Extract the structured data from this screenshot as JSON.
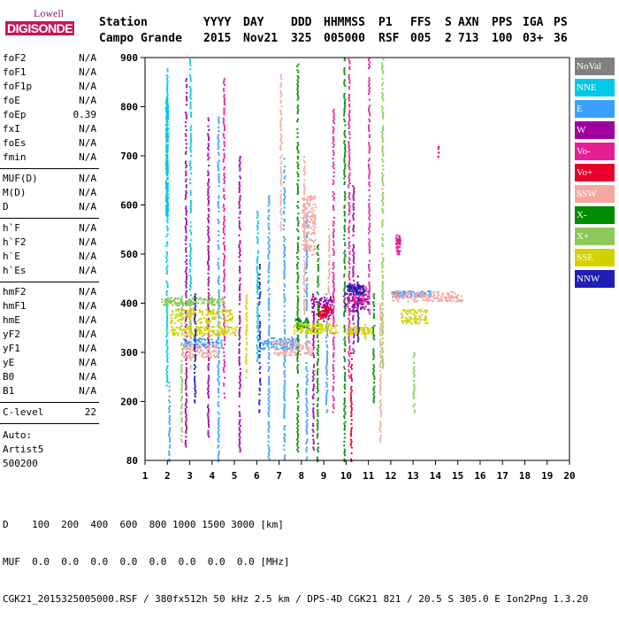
{
  "logo": {
    "line1": "Lowell",
    "line2": "DIGISONDE"
  },
  "header": {
    "labels": [
      "Station",
      "YYYY",
      "DAY",
      "DDD",
      "HHMMSS",
      "P1",
      "FFS",
      "S",
      "AXN",
      "PPS",
      "IGA",
      "PS"
    ],
    "values": [
      "Campo Grande",
      "2015",
      "Nov21",
      "325",
      "005000",
      "RSF",
      "005",
      "2",
      "713",
      "100",
      "03+",
      "36"
    ]
  },
  "params": [
    {
      "k": "foF2",
      "v": "N/A"
    },
    {
      "k": "foF1",
      "v": "N/A"
    },
    {
      "k": "foF1p",
      "v": "N/A"
    },
    {
      "k": "foE",
      "v": "N/A"
    },
    {
      "k": "foEp",
      "v": "0.39"
    },
    {
      "k": "fxI",
      "v": "N/A"
    },
    {
      "k": "foEs",
      "v": "N/A"
    },
    {
      "k": "fmin",
      "v": "N/A"
    },
    {
      "k": "MUF(D)",
      "v": "N/A"
    },
    {
      "k": "M(D)",
      "v": "N/A"
    },
    {
      "k": "D",
      "v": "N/A"
    },
    {
      "k": "h`F",
      "v": "N/A"
    },
    {
      "k": "h`F2",
      "v": "N/A"
    },
    {
      "k": "h`E",
      "v": "N/A"
    },
    {
      "k": "h`Es",
      "v": "N/A"
    },
    {
      "k": "hmF2",
      "v": "N/A"
    },
    {
      "k": "hmF1",
      "v": "N/A"
    },
    {
      "k": "hmE",
      "v": "N/A"
    },
    {
      "k": "yF2",
      "v": "N/A"
    },
    {
      "k": "yF1",
      "v": "N/A"
    },
    {
      "k": "yE",
      "v": "N/A"
    },
    {
      "k": "B0",
      "v": "N/A"
    },
    {
      "k": "B1",
      "v": "N/A"
    },
    {
      "k": "C-level",
      "v": "22"
    }
  ],
  "auto": {
    "label": "Auto:",
    "name": "Artist5",
    "code": "500200"
  },
  "legend": [
    {
      "name": "NoVal",
      "color": "#808080"
    },
    {
      "name": "NNE",
      "color": "#00c8e6"
    },
    {
      "name": "E",
      "color": "#3aa0ff"
    },
    {
      "name": "W",
      "color": "#a000a0"
    },
    {
      "name": "Vo-",
      "color": "#e61e96"
    },
    {
      "name": "Vo+",
      "color": "#e6002a"
    },
    {
      "name": "SSW",
      "color": "#f5a8a0"
    },
    {
      "name": "X-",
      "color": "#008c00"
    },
    {
      "name": "X+",
      "color": "#8cc85a"
    },
    {
      "name": "SSE",
      "color": "#d2d200"
    },
    {
      "name": "NNW",
      "color": "#1e1eb4"
    }
  ],
  "footer": {
    "d_row": "D    100  200  400  600  800 1000 1500 3000 [km]",
    "muf_row": "MUF  0.0  0.0  0.0  0.0  0.0  0.0  0.0  0.0 [MHz]",
    "info": "CGK21_2015325005000.RSF / 380fx512h 50 kHz 2.5 km / DPS-4D CGK21 821 / 20.5 S 305.0 E Ion2Png 1.3.20"
  },
  "chart_data": {
    "type": "scatter",
    "title": "",
    "xlabel": "",
    "ylabel": "",
    "xlim": [
      1,
      20
    ],
    "ylim": [
      80,
      900
    ],
    "x_ticks": [
      1,
      2,
      3,
      4,
      5,
      6,
      7,
      8,
      9,
      10,
      11,
      12,
      13,
      14,
      15,
      16,
      17,
      18,
      19,
      20
    ],
    "y_ticks": [
      200,
      300,
      400,
      500,
      600,
      700,
      800,
      900
    ],
    "y_tick_labels": [
      "200",
      "300",
      "400",
      "500",
      "600",
      "700",
      "800",
      "900"
    ],
    "bottom_label": "80",
    "series": [
      {
        "name": "NNE",
        "lines": [
          [
            1.95,
            230,
            880
          ],
          [
            3.0,
            330,
            900
          ],
          [
            6.0,
            280,
            590
          ]
        ],
        "clusters": [
          [
            1.95,
            700,
            0.05,
            120
          ]
        ]
      },
      {
        "name": "E",
        "lines": [
          [
            2.05,
            80,
            240
          ],
          [
            4.25,
            80,
            780
          ],
          [
            6.5,
            80,
            620
          ],
          [
            7.2,
            80,
            700
          ],
          [
            8.2,
            80,
            580
          ],
          [
            9.1,
            180,
            420
          ]
        ],
        "clusters": [
          [
            3.55,
            320,
            0.85,
            10
          ],
          [
            7.0,
            320,
            0.9,
            12
          ],
          [
            12.9,
            420,
            0.9,
            6
          ]
        ]
      },
      {
        "name": "W",
        "lines": [
          [
            2.8,
            110,
            860
          ],
          [
            3.8,
            130,
            780
          ],
          [
            5.2,
            100,
            700
          ],
          [
            8.5,
            100,
            420
          ],
          [
            10.3,
            300,
            650
          ]
        ],
        "clusters": [
          [
            8.9,
            395,
            0.5,
            20
          ],
          [
            10.4,
            405,
            0.55,
            22
          ]
        ]
      },
      {
        "name": "Vo-",
        "lines": [
          [
            4.5,
            210,
            860
          ],
          [
            9.4,
            180,
            800
          ],
          [
            10.1,
            250,
            900
          ],
          [
            11.0,
            380,
            900
          ]
        ],
        "clusters": [
          [
            10.6,
            420,
            0.3,
            20
          ],
          [
            12.3,
            520,
            0.1,
            20
          ]
        ]
      },
      {
        "name": "Vo+",
        "lines": [
          [
            10.2,
            80,
            300
          ],
          [
            14.1,
            700,
            720
          ]
        ],
        "clusters": [
          [
            9.0,
            380,
            0.3,
            15
          ]
        ]
      },
      {
        "name": "SSW",
        "lines": [
          [
            3.0,
            270,
            400
          ],
          [
            7.05,
            550,
            870
          ],
          [
            8.1,
            380,
            700
          ],
          [
            9.2,
            420,
            560
          ],
          [
            11.5,
            120,
            400
          ]
        ],
        "clusters": [
          [
            3.4,
            305,
            0.8,
            15
          ],
          [
            7.6,
            310,
            0.9,
            15
          ],
          [
            13.6,
            415,
            1.6,
            10
          ],
          [
            8.3,
            560,
            0.3,
            60
          ]
        ]
      },
      {
        "name": "X-",
        "lines": [
          [
            7.8,
            100,
            890
          ],
          [
            8.7,
            80,
            520
          ],
          [
            9.9,
            80,
            900
          ],
          [
            11.2,
            200,
            420
          ]
        ],
        "clusters": [
          [
            8.0,
            360,
            0.3,
            10
          ]
        ]
      },
      {
        "name": "X+",
        "lines": [
          [
            2.6,
            120,
            420
          ],
          [
            13.0,
            180,
            300
          ],
          [
            11.6,
            270,
            900
          ]
        ],
        "clusters": [
          [
            3.1,
            405,
            1.4,
            8
          ]
        ]
      },
      {
        "name": "SSE",
        "lines": [
          [
            5.5,
            250,
            420
          ],
          [
            10.8,
            330,
            360
          ]
        ],
        "clusters": [
          [
            3.5,
            375,
            1.4,
            15
          ],
          [
            3.6,
            345,
            1.5,
            10
          ],
          [
            8.6,
            350,
            1.0,
            10
          ],
          [
            10.6,
            345,
            0.6,
            8
          ],
          [
            13.0,
            375,
            0.6,
            15
          ]
        ]
      },
      {
        "name": "NNW",
        "lines": [
          [
            3.2,
            200,
            420
          ],
          [
            6.1,
            180,
            480
          ],
          [
            10.5,
            320,
            460
          ]
        ],
        "clusters": [
          [
            10.4,
            430,
            0.4,
            10
          ]
        ]
      }
    ]
  }
}
